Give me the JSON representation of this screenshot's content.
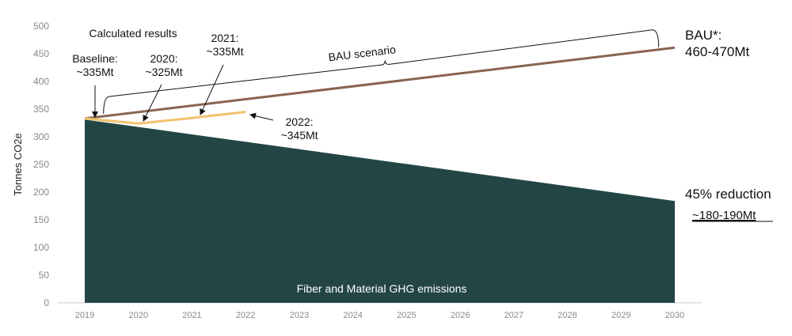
{
  "chart_data": {
    "type": "area",
    "ylabel": "Tonnes CO2e",
    "xlabel": "",
    "ylim": [
      0,
      500
    ],
    "yticks": [
      0,
      50,
      100,
      150,
      200,
      250,
      300,
      350,
      400,
      450,
      500
    ],
    "x": [
      "2019",
      "2020",
      "2021",
      "2022",
      "2023",
      "2024",
      "2025",
      "2026",
      "2027",
      "2028",
      "2029",
      "2030"
    ],
    "grid": false,
    "series": [
      {
        "name": "Fiber and Material GHG emissions",
        "type": "area",
        "color": "#234645",
        "x": [
          2019,
          2030
        ],
        "values": [
          331,
          184
        ]
      },
      {
        "name": "BAU scenario",
        "type": "line",
        "color": "#8a6352",
        "x": [
          2019,
          2030
        ],
        "values": [
          333,
          461
        ]
      },
      {
        "name": "Calculated results",
        "type": "line",
        "color": "#f0c36d",
        "x": [
          2019,
          2020,
          2021,
          2022
        ],
        "values": [
          333,
          324,
          334,
          345
        ]
      }
    ],
    "annotations": {
      "calculated_results": "Calculated results",
      "baseline_1": "Baseline:",
      "baseline_2": "~335Mt",
      "y2020_1": "2020:",
      "y2020_2": "~325Mt",
      "y2021_1": "2021:",
      "y2021_2": "~335Mt",
      "y2022_1": "2022:",
      "y2022_2": "~345Mt",
      "bau_scenario": "BAU scenario",
      "bau_1": "BAU*:",
      "bau_2": "460-470Mt",
      "reduction_1": "45% reduction",
      "reduction_2": "~180-190Mt",
      "area_label": "Fiber and Material GHG emissions"
    }
  }
}
